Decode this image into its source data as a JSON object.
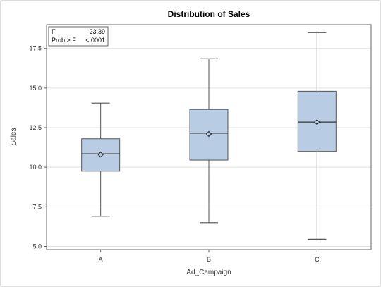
{
  "chart_data": {
    "type": "box",
    "title": "Distribution of Sales",
    "xlabel": "Ad_Campaign",
    "ylabel": "Sales",
    "ylim": [
      4.8,
      19.0
    ],
    "yticks": [
      "5.0",
      "7.5",
      "10.0",
      "12.5",
      "15.0",
      "17.5"
    ],
    "grid": true,
    "categories": [
      "A",
      "B",
      "C"
    ],
    "boxes": [
      {
        "category": "A",
        "min": 6.9,
        "q1": 9.75,
        "median": 10.85,
        "mean": 10.8,
        "q3": 11.8,
        "max": 14.05
      },
      {
        "category": "B",
        "min": 6.5,
        "q1": 10.45,
        "median": 12.15,
        "mean": 12.1,
        "q3": 13.65,
        "max": 16.85
      },
      {
        "category": "C",
        "min": 5.45,
        "q1": 11.0,
        "median": 12.85,
        "mean": 12.85,
        "q3": 14.8,
        "max": 18.5
      }
    ],
    "stats": {
      "f_label": "F",
      "f_value": "23.39",
      "p_label": "Prob > F",
      "p_value": "<.0001"
    },
    "colors": {
      "box_fill": "#b8cce4",
      "box_stroke": "#555555",
      "grid": "#e2e2e2"
    }
  }
}
